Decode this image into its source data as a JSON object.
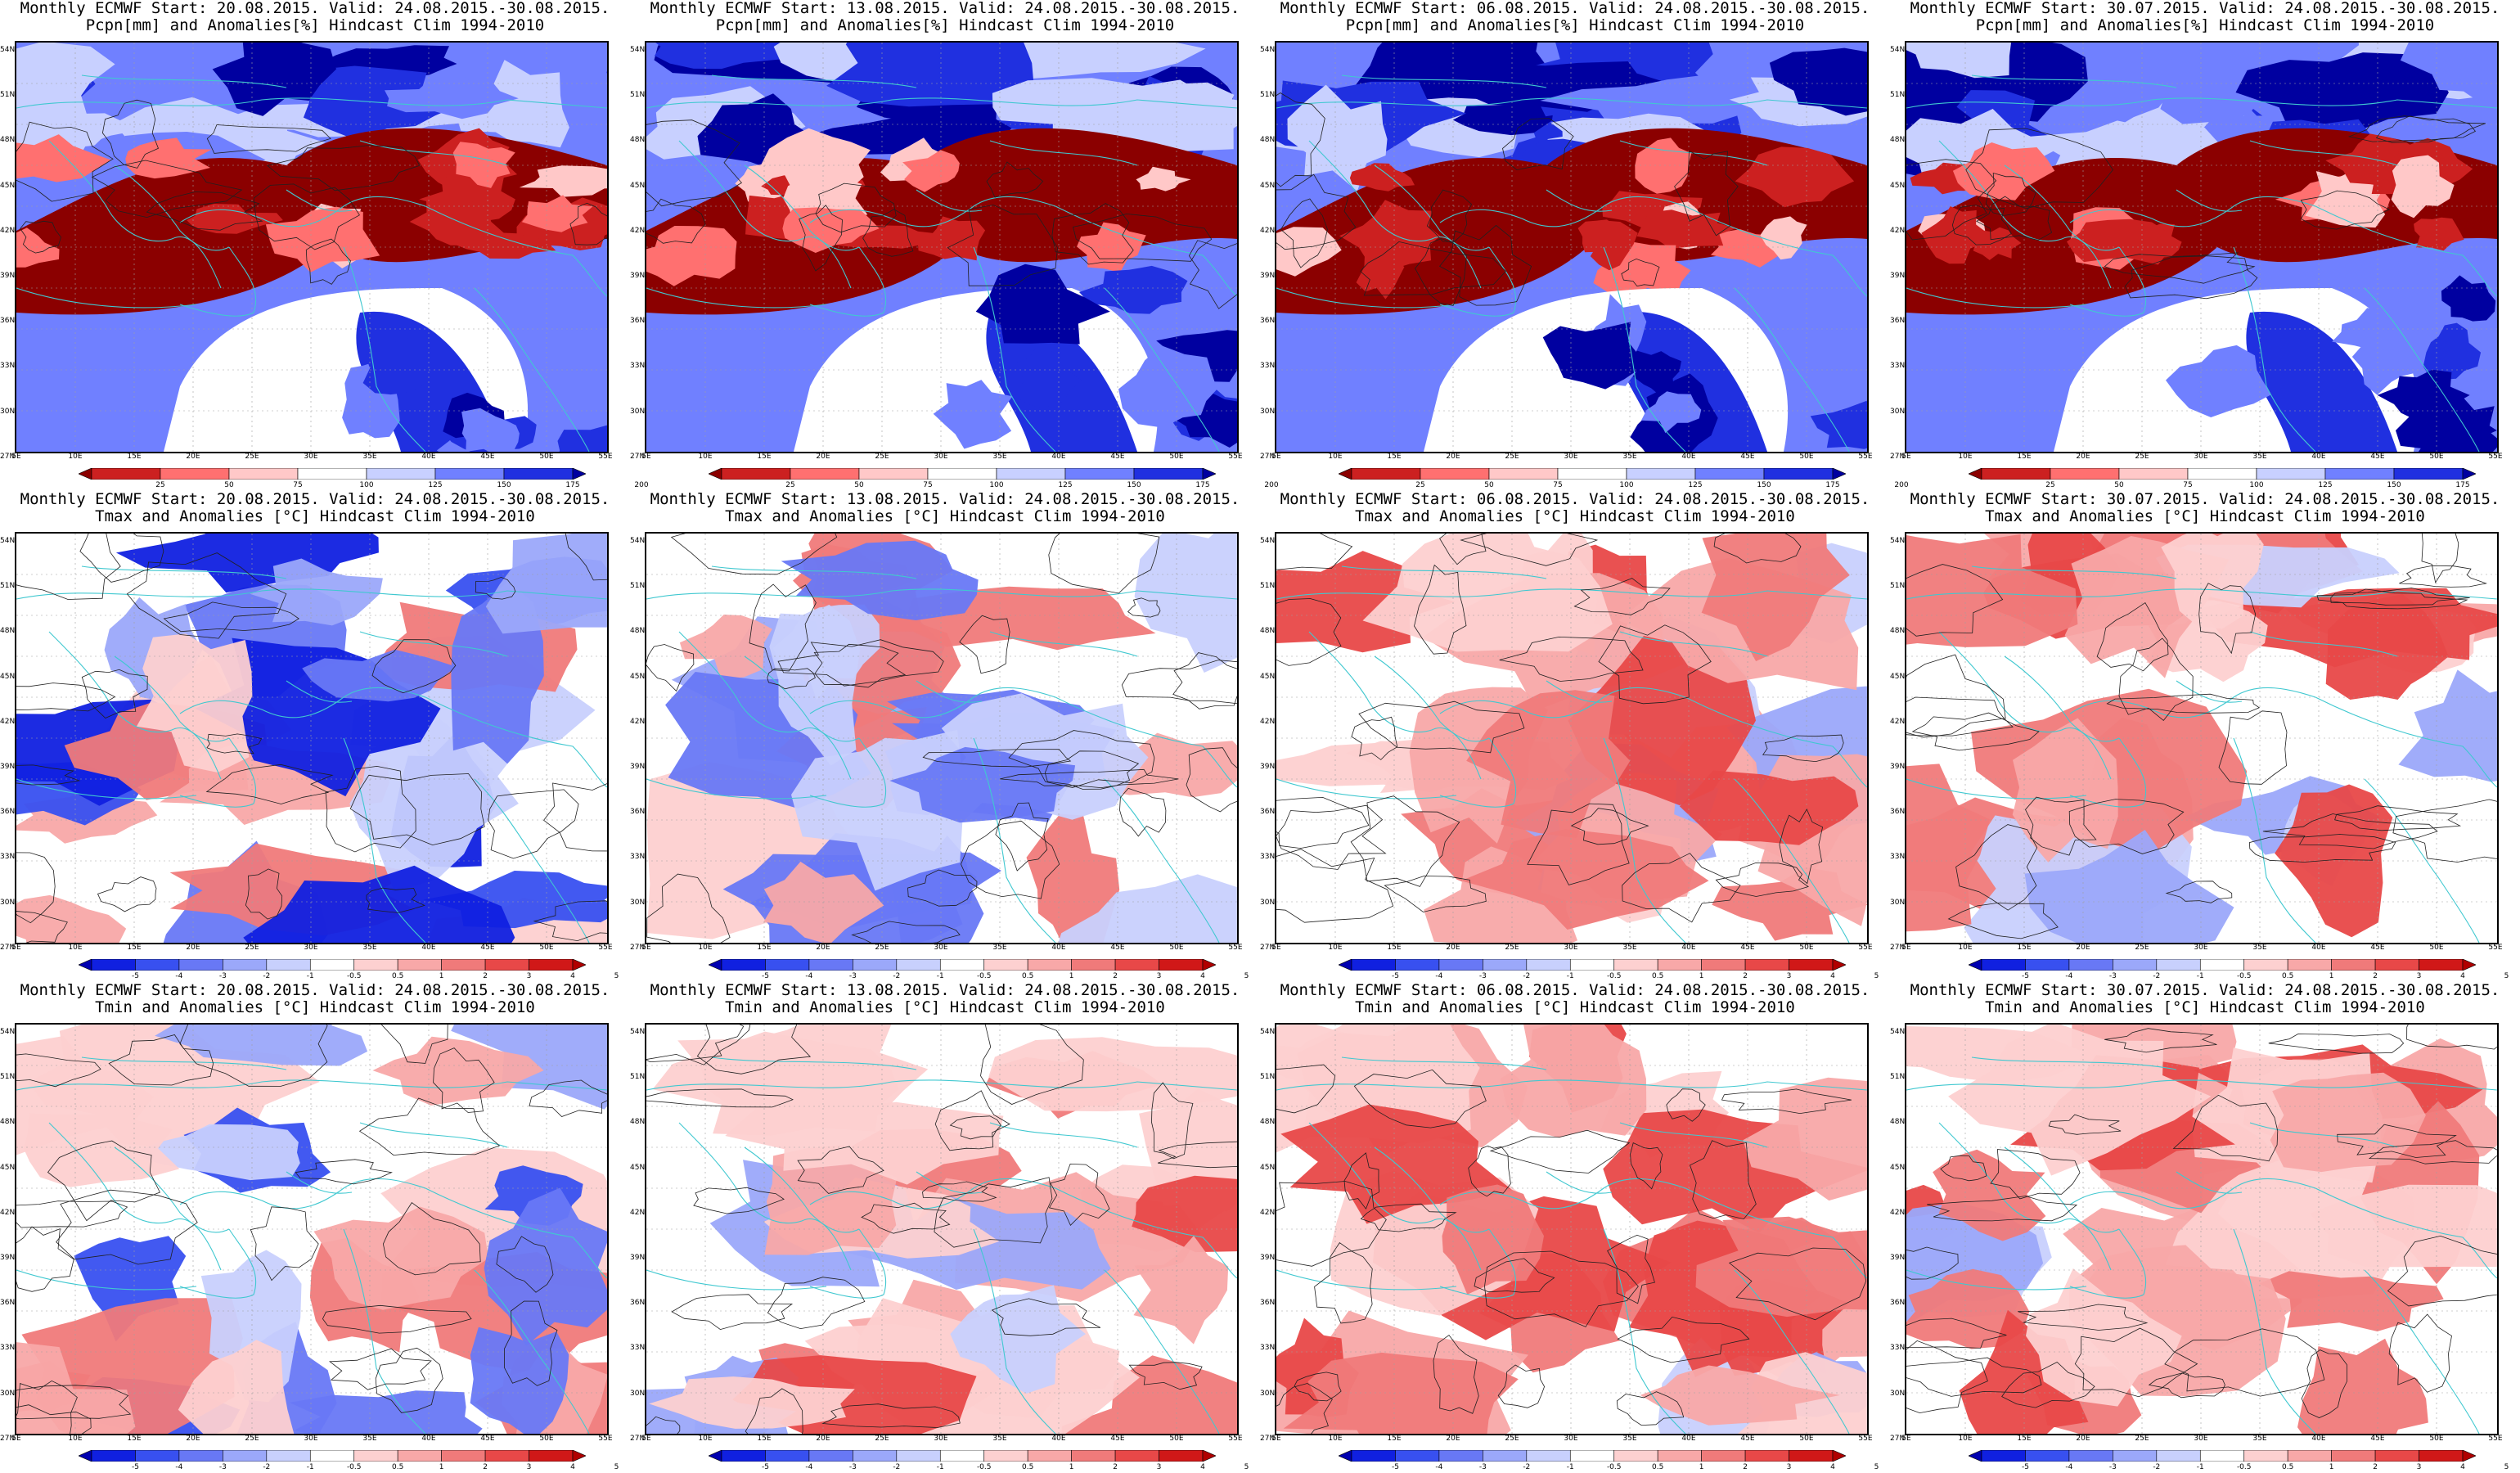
{
  "figure": {
    "rows": [
      {
        "variable": "precip",
        "title_line2": "Pcpn[mm] and Anomalies[%] Hindcast Clim 1994-2010",
        "colorbar": {
          "labels": [
            "25",
            "50",
            "75",
            "100",
            "125",
            "150",
            "175",
            "200"
          ],
          "colors": [
            "#8b0000",
            "#cc2020",
            "#ff7070",
            "#ffc8c8",
            "#ffffff",
            "#c8d0ff",
            "#7080ff",
            "#2030e0",
            "#0000a0"
          ]
        }
      },
      {
        "variable": "tmax",
        "title_line2": "Tmax and Anomalies [°C] Hindcast Clim 1994-2010",
        "colorbar": {
          "labels": [
            "-5",
            "-4",
            "-3",
            "-2",
            "-1",
            "-0.5",
            "0.5",
            "1",
            "2",
            "3",
            "4",
            "5"
          ],
          "colors": [
            "#0000b0",
            "#1020e0",
            "#3850f0",
            "#6878f5",
            "#9ba8fa",
            "#c8d0fd",
            "#ffffff",
            "#fdd0d0",
            "#f8a8a8",
            "#f07a7a",
            "#e84848",
            "#d01818",
            "#b00000"
          ]
        }
      },
      {
        "variable": "tmin",
        "title_line2": "Tmin and Anomalies [°C] Hindcast Clim 1994-2010",
        "colorbar": {
          "labels": [
            "-5",
            "-4",
            "-3",
            "-2",
            "-1",
            "-0.5",
            "0.5",
            "1",
            "2",
            "3",
            "4",
            "5"
          ],
          "colors": [
            "#0000b0",
            "#1020e0",
            "#3850f0",
            "#6878f5",
            "#9ba8fa",
            "#c8d0fd",
            "#ffffff",
            "#fdd0d0",
            "#f8a8a8",
            "#f07a7a",
            "#e84848",
            "#d01818",
            "#b00000"
          ]
        }
      }
    ],
    "columns": [
      {
        "title_line1": "Monthly ECMWF Start: 20.08.2015. Valid: 24.08.2015.-30.08.2015."
      },
      {
        "title_line1": "Monthly ECMWF Start: 13.08.2015. Valid: 24.08.2015.-30.08.2015."
      },
      {
        "title_line1": "Monthly ECMWF Start: 06.08.2015. Valid: 24.08.2015.-30.08.2015."
      },
      {
        "title_line1": "Monthly ECMWF Start: 30.07.2015. Valid: 24.08.2015.-30.08.2015."
      }
    ],
    "lat_labels": [
      "54N",
      "51N",
      "48N",
      "45N",
      "42N",
      "39N",
      "36N",
      "33N",
      "30N",
      "27N"
    ],
    "lon_labels": [
      "5E",
      "10E",
      "15E",
      "20E",
      "25E",
      "30E",
      "35E",
      "40E",
      "45E",
      "50E",
      "55E"
    ],
    "colors": {
      "coastline": "#40c8d0",
      "contour": "#202020",
      "grid": "#a0a0a0",
      "blank_area": "#ffffff"
    }
  }
}
